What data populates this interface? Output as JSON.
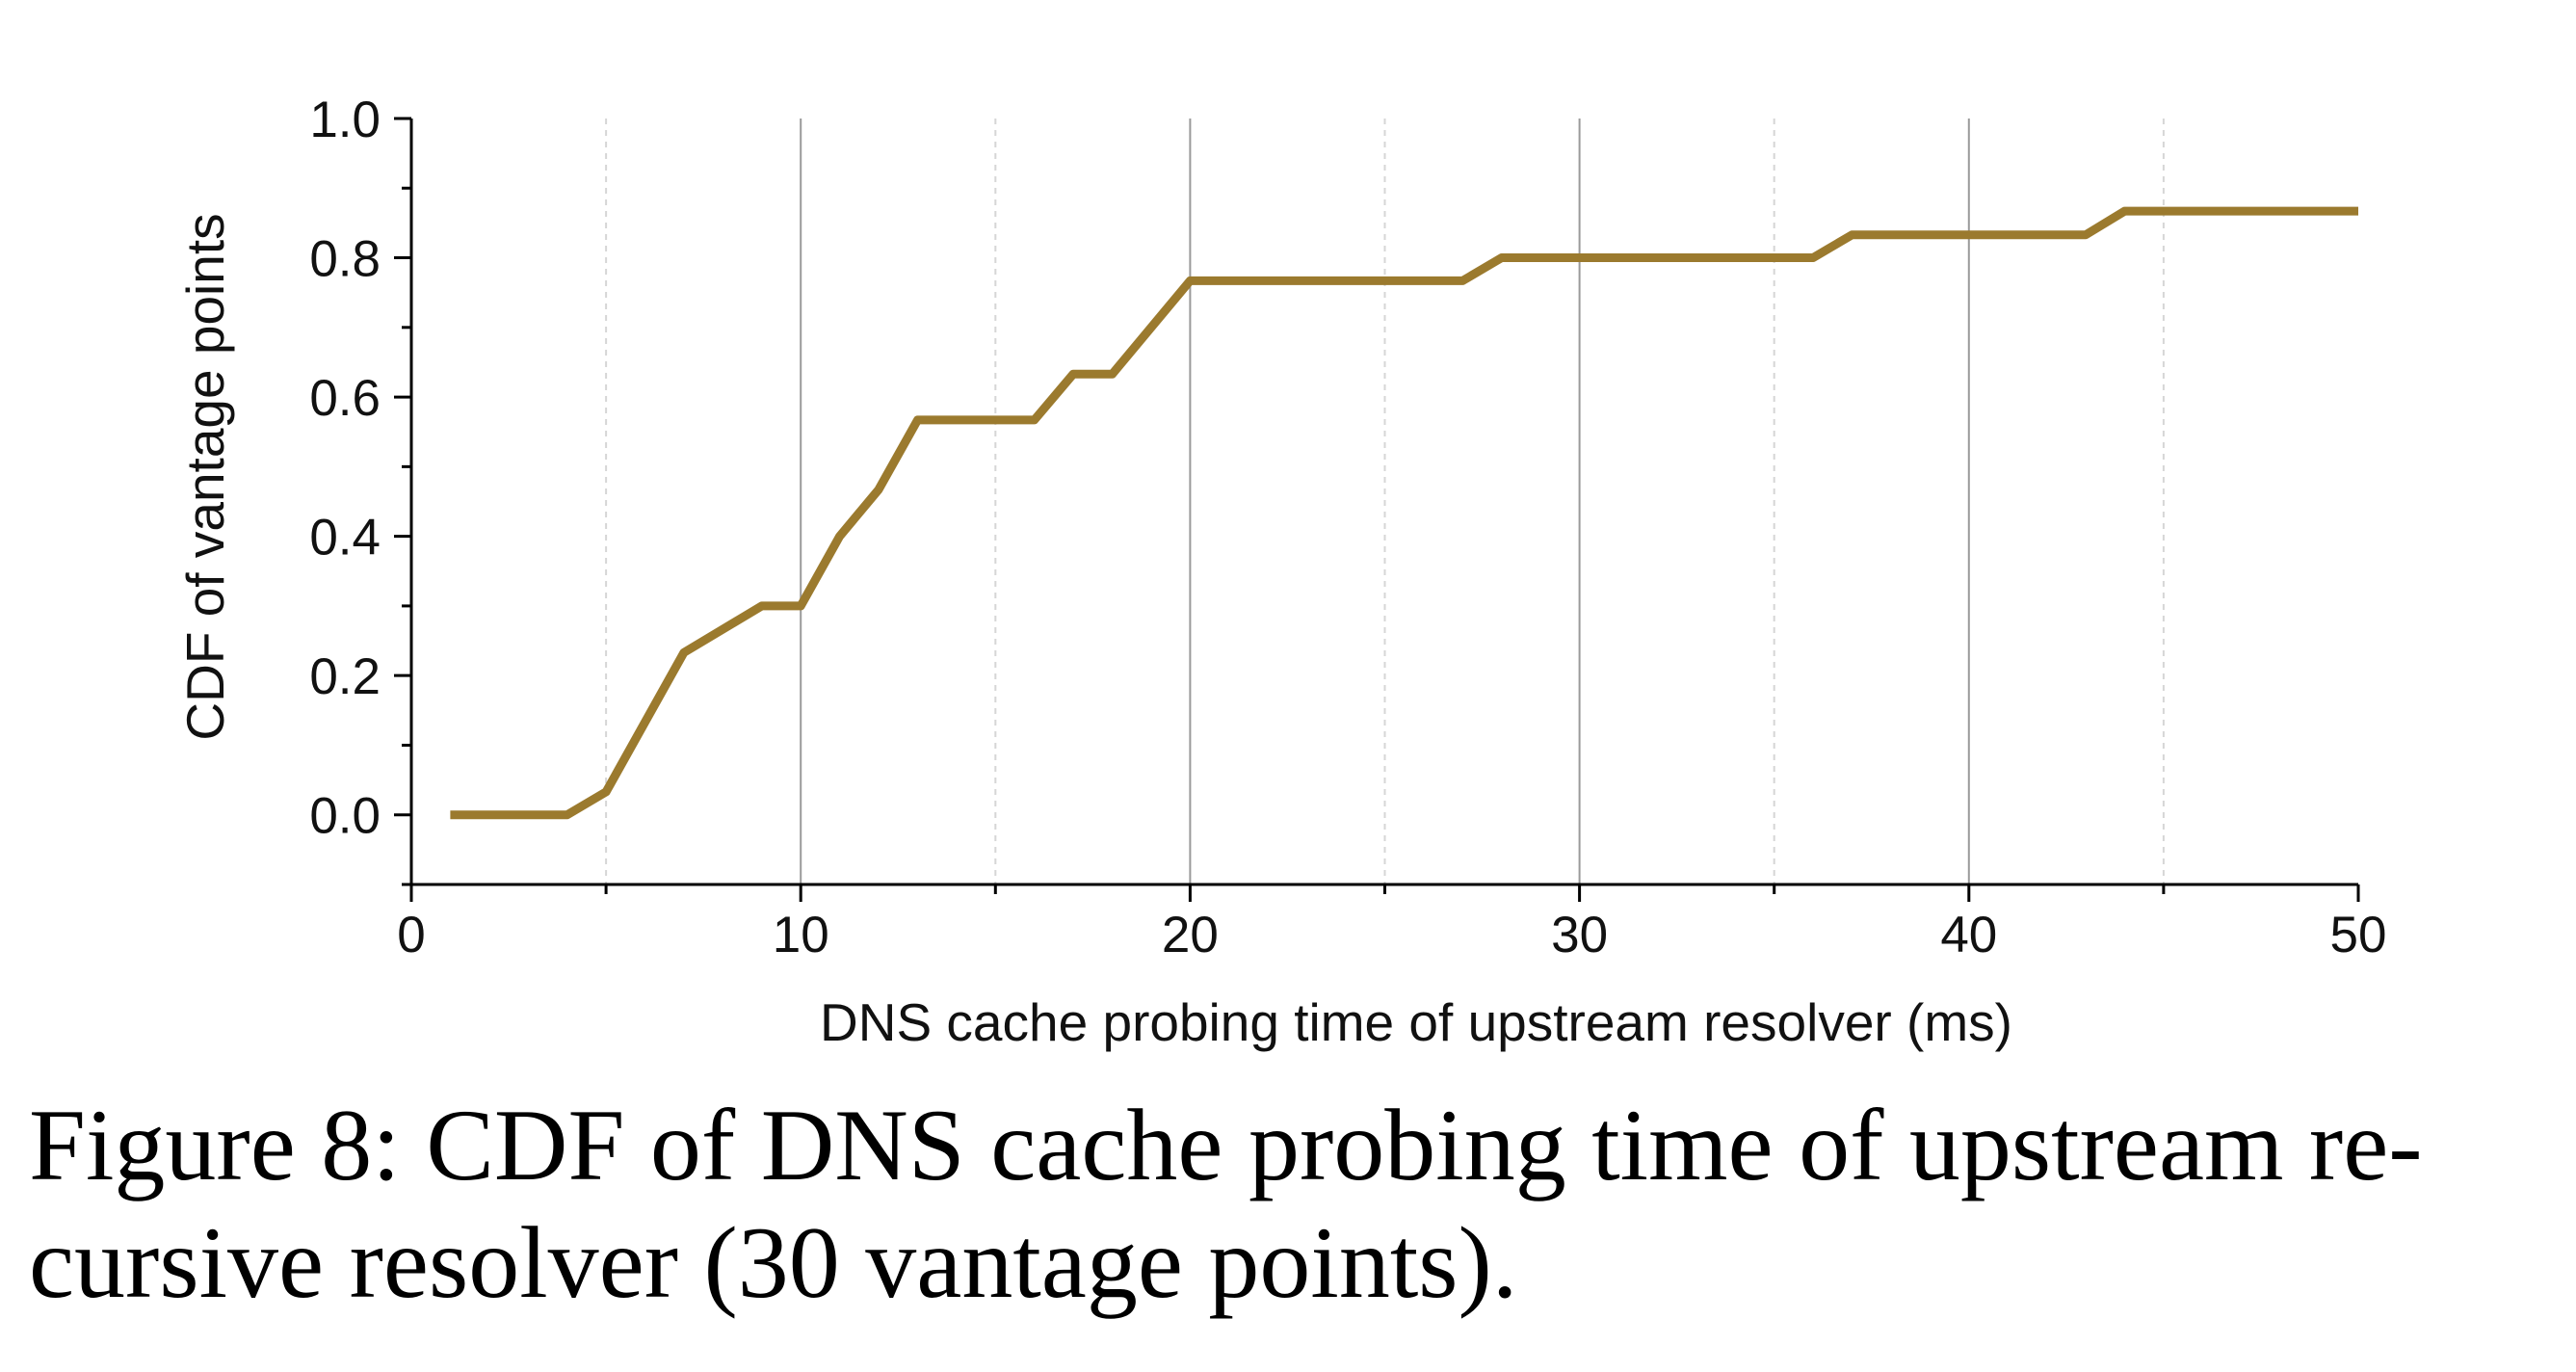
{
  "chart_data": {
    "type": "line",
    "title": "",
    "xlabel": "DNS cache probing time of upstream resolver (ms)",
    "ylabel": "CDF of vantage points",
    "xlim": [
      0,
      50
    ],
    "ylim": [
      -0.1,
      1.0
    ],
    "x_ticks": [
      "0",
      "10",
      "20",
      "30",
      "40",
      "50"
    ],
    "y_ticks": [
      "0.0",
      "0.2",
      "0.4",
      "0.6",
      "0.8",
      "1.0"
    ],
    "grid": "vertical major (solid) and minor (dashed)",
    "legend": "none",
    "series": [
      {
        "color": "#9B7A2E",
        "points": [
          [
            1,
            0.0
          ],
          [
            4,
            0.0
          ],
          [
            5,
            0.033
          ],
          [
            7,
            0.233
          ],
          [
            9,
            0.3
          ],
          [
            10,
            0.3
          ],
          [
            11,
            0.4
          ],
          [
            12,
            0.467
          ],
          [
            13,
            0.567
          ],
          [
            16,
            0.567
          ],
          [
            17,
            0.633
          ],
          [
            18,
            0.633
          ],
          [
            20,
            0.767
          ],
          [
            27,
            0.767
          ],
          [
            28,
            0.8
          ],
          [
            36,
            0.8
          ],
          [
            37,
            0.833
          ],
          [
            43,
            0.833
          ],
          [
            44,
            0.867
          ],
          [
            50,
            0.867
          ]
        ]
      }
    ]
  },
  "caption": {
    "line1": "Figure 8: CDF of DNS cache probing time of upstream re-",
    "line2": "cursive resolver (30 vantage points)."
  }
}
